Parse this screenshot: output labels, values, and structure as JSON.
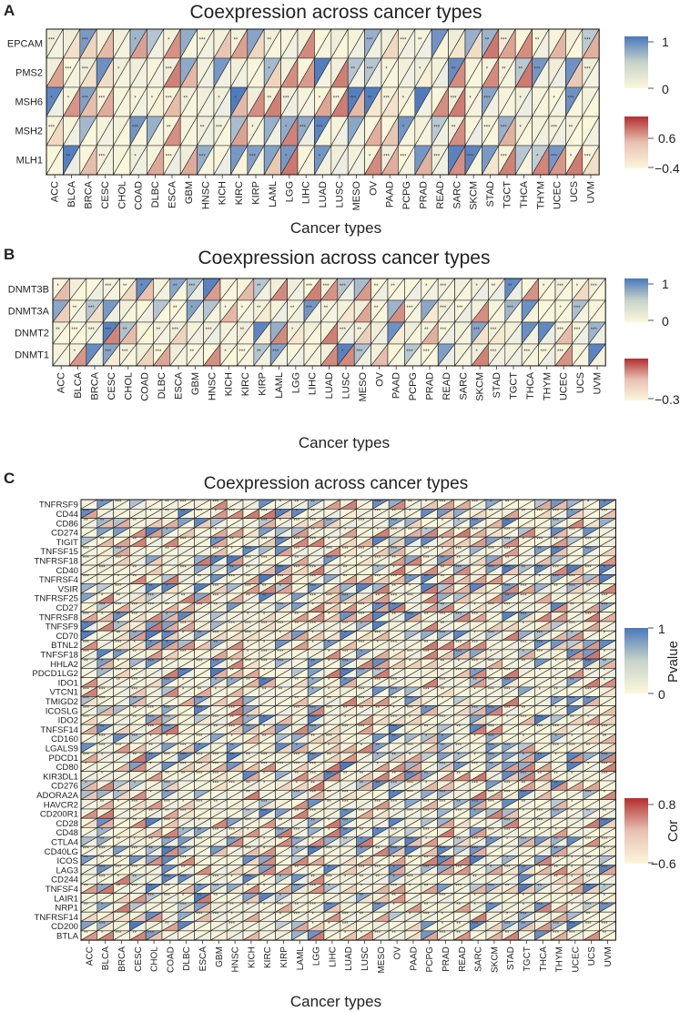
{
  "panels": [
    {
      "letter": "A",
      "title": "Coexpression across cancer types",
      "xlabel": "Cancer types",
      "legend_p_ticks": [
        "1",
        "0"
      ],
      "legend_cor_ticks": [
        "0.6",
        "−0.4"
      ],
      "legend_names": []
    },
    {
      "letter": "B",
      "title": "Coexpression across cancer types",
      "xlabel": "Cancer types",
      "legend_p_ticks": [
        "1",
        "0"
      ],
      "legend_cor_ticks": [
        "−0.3"
      ],
      "legend_names": []
    },
    {
      "letter": "C",
      "title": "Coexpression across cancer types",
      "xlabel": "Cancer types",
      "legend_p_ticks": [
        "1",
        "0"
      ],
      "legend_cor_ticks": [
        "0.8",
        "−0.6"
      ],
      "legend_names": [
        "Pvalue",
        "Cor"
      ]
    }
  ],
  "colors": {
    "p_high": "#4a78bd",
    "p_low": "#fbf7dc",
    "cor_high": "#b22f2f",
    "cor_low": "#fbf7dc"
  },
  "chart_data": [
    {
      "type": "heatmap",
      "title": "Coexpression across cancer types",
      "xlabel": "Cancer types",
      "categories": [
        "ACC",
        "BLCA",
        "BRCA",
        "CESC",
        "CHOL",
        "COAD",
        "DLBC",
        "ESCA",
        "GBM",
        "HNSC",
        "KICH",
        "KIRC",
        "KIRP",
        "LAML",
        "LGG",
        "LIHC",
        "LUAD",
        "LUSC",
        "MESO",
        "OV",
        "PAAD",
        "PCPG",
        "PRAD",
        "READ",
        "SARC",
        "SKCM",
        "STAD",
        "TGCT",
        "THCA",
        "THYM",
        "UCEC",
        "UCS",
        "UVM"
      ],
      "genes": [
        "EPCAM",
        "PMS2",
        "MSH6",
        "MSH2",
        "MLH1"
      ],
      "pvalue_range": [
        0,
        1
      ],
      "cor_range": [
        -0.4,
        0.6
      ],
      "cell_encoding": "upper-left triangle = Pvalue, lower-right triangle = Cor, stars = significance"
    },
    {
      "type": "heatmap",
      "title": "Coexpression across cancer types",
      "xlabel": "Cancer types",
      "categories": [
        "ACC",
        "BLCA",
        "BRCA",
        "CESC",
        "CHOL",
        "COAD",
        "DLBC",
        "ESCA",
        "GBM",
        "HNSC",
        "KICH",
        "KIRC",
        "KIRP",
        "LAML",
        "LGG",
        "LIHC",
        "LUAD",
        "LUSC",
        "MESO",
        "OV",
        "PAAD",
        "PCPG",
        "PRAD",
        "READ",
        "SARC",
        "SKCM",
        "STAD",
        "TGCT",
        "THCA",
        "THYM",
        "UCEC",
        "UCS",
        "UVM"
      ],
      "genes": [
        "DNMT3B",
        "DNMT3A",
        "DNMT2",
        "DNMT1"
      ],
      "pvalue_range": [
        0,
        1
      ],
      "cor_range": [
        -0.3,
        null
      ],
      "cell_encoding": "upper-left triangle = Pvalue, lower-right triangle = Cor, stars = significance"
    },
    {
      "type": "heatmap",
      "title": "Coexpression across cancer types",
      "xlabel": "Cancer types",
      "categories": [
        "ACC",
        "BLCA",
        "BRCA",
        "CESC",
        "CHOL",
        "COAD",
        "DLBC",
        "ESCA",
        "GBM",
        "HNSC",
        "KICH",
        "KIRC",
        "KIRP",
        "LAML",
        "LGG",
        "LIHC",
        "LUAD",
        "LUSC",
        "MESO",
        "OV",
        "PAAD",
        "PCPG",
        "PRAD",
        "READ",
        "SARC",
        "SKCM",
        "STAD",
        "TGCT",
        "THCA",
        "THYM",
        "UCEC",
        "UCS",
        "UVM"
      ],
      "genes": [
        "TNFRSF9",
        "CD44",
        "CD86",
        "CD274",
        "TIGIT",
        "TNFSF15",
        "TNFRSF18",
        "CD40",
        "TNFRSF4",
        "VSIR",
        "TNFRSF25",
        "CD27",
        "TNFRSF8",
        "TNFSF9",
        "CD70",
        "BTNL2",
        "TNFSF18",
        "HHLA2",
        "PDCD1LG2",
        "IDO1",
        "VTCN1",
        "TMIGD2",
        "ICOSLG",
        "IDO2",
        "TNFSF14",
        "CD160",
        "LGALS9",
        "PDCD1",
        "CD80",
        "KIR3DL1",
        "CD276",
        "ADORA2A",
        "HAVCR2",
        "CD200R1",
        "CD28",
        "CD48",
        "CTLA4",
        "CD40LG",
        "ICOS",
        "LAG3",
        "CD244",
        "TNFSF4",
        "LAIR1",
        "NRP1",
        "TNFRSF14",
        "CD200",
        "BTLA"
      ],
      "pvalue_range": [
        0,
        1
      ],
      "cor_range": [
        -0.6,
        0.8
      ],
      "cell_encoding": "upper-left triangle = Pvalue, lower-right triangle = Cor, stars = significance"
    }
  ]
}
